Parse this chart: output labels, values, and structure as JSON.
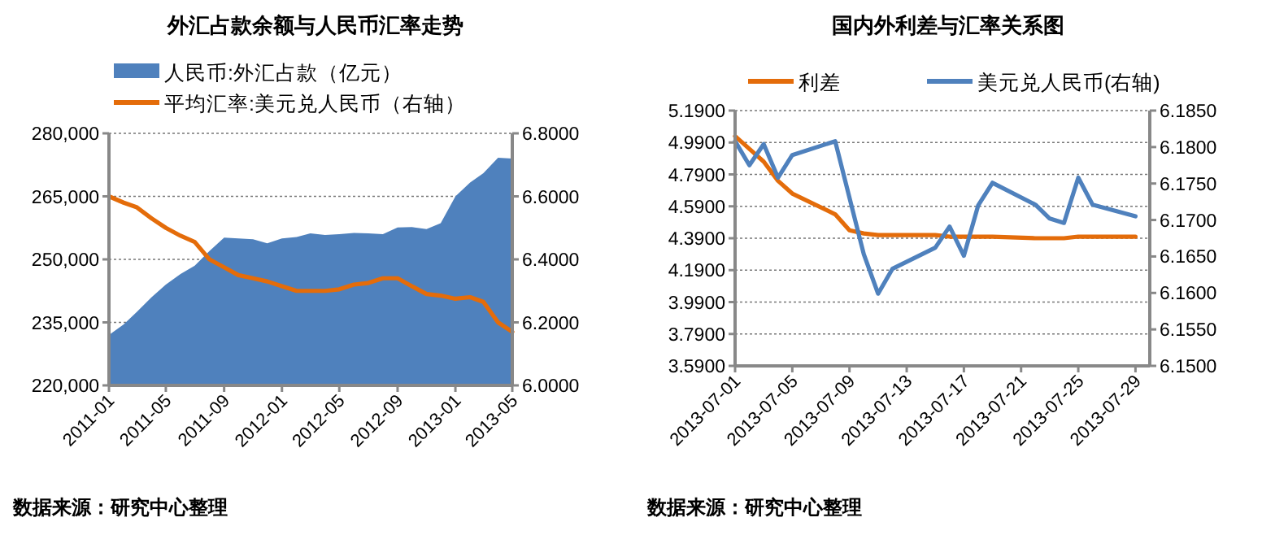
{
  "chart_data": [
    {
      "type": "area",
      "title": "外汇占款余额与人民币汇率走势",
      "x": [
        "2011-01",
        "2011-02",
        "2011-03",
        "2011-04",
        "2011-05",
        "2011-06",
        "2011-07",
        "2011-08",
        "2011-09",
        "2011-10",
        "2011-11",
        "2011-12",
        "2012-01",
        "2012-02",
        "2012-03",
        "2012-04",
        "2012-05",
        "2012-06",
        "2012-07",
        "2012-08",
        "2012-09",
        "2012-10",
        "2012-11",
        "2012-12",
        "2013-01",
        "2013-02",
        "2013-03",
        "2013-04",
        "2013-05"
      ],
      "series": [
        {
          "name": "人民币:外汇占款（亿元）",
          "color": "#4f81bd",
          "values": [
            232000,
            234500,
            237500,
            241000,
            244000,
            246500,
            248500,
            252000,
            255200,
            255000,
            254800,
            253800,
            255000,
            255300,
            256200,
            255800,
            256000,
            256300,
            256200,
            256000,
            257600,
            257700,
            257200,
            258600,
            265000,
            268300,
            270500,
            274200,
            274000
          ]
        },
        {
          "name": "平均汇率:美元兑人民币（右轴）",
          "type": "line",
          "axis": "y2",
          "color": "#e46c0a",
          "values": [
            6.6,
            6.58,
            6.565,
            6.53,
            6.5,
            6.475,
            6.455,
            6.4,
            6.375,
            6.35,
            6.34,
            6.33,
            6.315,
            6.3,
            6.3,
            6.3,
            6.305,
            6.32,
            6.325,
            6.34,
            6.34,
            6.315,
            6.29,
            6.285,
            6.275,
            6.28,
            6.265,
            6.2,
            6.17
          ]
        }
      ],
      "xlim": [
        "2011-01",
        "2013-05"
      ],
      "xticks": [
        "2011-01",
        "2011-05",
        "2011-09",
        "2012-01",
        "2012-05",
        "2012-09",
        "2013-01",
        "2013-05"
      ],
      "ylim": [
        220000,
        280000
      ],
      "yticks": [
        {
          "value": 220000,
          "label": "220,000"
        },
        {
          "value": 235000,
          "label": "235,000"
        },
        {
          "value": 250000,
          "label": "250,000"
        },
        {
          "value": 265000,
          "label": "265,000"
        },
        {
          "value": 280000,
          "label": "280,000"
        }
      ],
      "y2lim": [
        6.0,
        6.8
      ],
      "y2ticks": [
        {
          "value": 6.0,
          "label": "6.0000"
        },
        {
          "value": 6.2,
          "label": "6.2000"
        },
        {
          "value": 6.4,
          "label": "6.4000"
        },
        {
          "value": 6.6,
          "label": "6.6000"
        },
        {
          "value": 6.8,
          "label": "6.8000"
        }
      ],
      "grid": "y",
      "legend": "top",
      "marker": "none",
      "line_style": "solid",
      "annotations": [
        "数据来源：研究中心整理"
      ]
    },
    {
      "type": "line",
      "title": "国内外利差与汇率关系图",
      "series": [
        {
          "name": "利差",
          "color": "#e46c0a",
          "x": [
            "2013-07-01",
            "2013-07-02",
            "2013-07-03",
            "2013-07-04",
            "2013-07-05",
            "2013-07-08",
            "2013-07-09",
            "2013-07-10",
            "2013-07-11",
            "2013-07-12",
            "2013-07-15",
            "2013-07-16",
            "2013-07-17",
            "2013-07-18",
            "2013-07-19",
            "2013-07-22",
            "2013-07-23",
            "2013-07-24",
            "2013-07-25",
            "2013-07-26",
            "2013-07-29"
          ],
          "values": [
            5.03,
            4.95,
            4.87,
            4.75,
            4.67,
            4.54,
            4.44,
            4.42,
            4.41,
            4.41,
            4.41,
            4.4,
            4.4,
            4.4,
            4.4,
            4.39,
            4.39,
            4.39,
            4.4,
            4.4,
            4.4
          ]
        },
        {
          "name": "美元兑人民币(右轴)",
          "color": "#4f81bd",
          "axis": "y2",
          "x": [
            "2013-07-01",
            "2013-07-02",
            "2013-07-03",
            "2013-07-04",
            "2013-07-05",
            "2013-07-08",
            "2013-07-10",
            "2013-07-11",
            "2013-07-12",
            "2013-07-15",
            "2013-07-16",
            "2013-07-17",
            "2013-07-18",
            "2013-07-19",
            "2013-07-22",
            "2013-07-23",
            "2013-07-24",
            "2013-07-25",
            "2013-07-26",
            "2013-07-29"
          ],
          "values": [
            6.1808,
            6.1775,
            6.1804,
            6.1758,
            6.1789,
            6.1808,
            6.1653,
            6.1599,
            6.1633,
            6.1662,
            6.1691,
            6.1651,
            6.172,
            6.1751,
            6.1721,
            6.1702,
            6.1696,
            6.1758,
            6.1721,
            6.1705
          ]
        }
      ],
      "xlim": [
        "2013-07-01",
        "2013-07-30"
      ],
      "xticks": [
        "2013-07-01",
        "2013-07-05",
        "2013-07-09",
        "2013-07-13",
        "2013-07-17",
        "2013-07-21",
        "2013-07-25",
        "2013-07-29"
      ],
      "ylim": [
        3.59,
        5.19
      ],
      "yticks": [
        {
          "value": 3.59,
          "label": "3.5900"
        },
        {
          "value": 3.79,
          "label": "3.7900"
        },
        {
          "value": 3.99,
          "label": "3.9900"
        },
        {
          "value": 4.19,
          "label": "4.1900"
        },
        {
          "value": 4.39,
          "label": "4.3900"
        },
        {
          "value": 4.59,
          "label": "4.5900"
        },
        {
          "value": 4.79,
          "label": "4.7900"
        },
        {
          "value": 4.99,
          "label": "4.9900"
        },
        {
          "value": 5.19,
          "label": "5.1900"
        }
      ],
      "y2lim": [
        6.15,
        6.185
      ],
      "y2ticks": [
        {
          "value": 6.15,
          "label": "6.1500"
        },
        {
          "value": 6.155,
          "label": "6.1550"
        },
        {
          "value": 6.16,
          "label": "6.1600"
        },
        {
          "value": 6.165,
          "label": "6.1650"
        },
        {
          "value": 6.17,
          "label": "6.1700"
        },
        {
          "value": 6.175,
          "label": "6.1750"
        },
        {
          "value": 6.18,
          "label": "6.1800"
        },
        {
          "value": 6.185,
          "label": "6.1850"
        }
      ],
      "grid": "y",
      "legend": "top",
      "marker": "none",
      "line_style": "solid",
      "annotations": [
        "数据来源：研究中心整理"
      ]
    }
  ]
}
